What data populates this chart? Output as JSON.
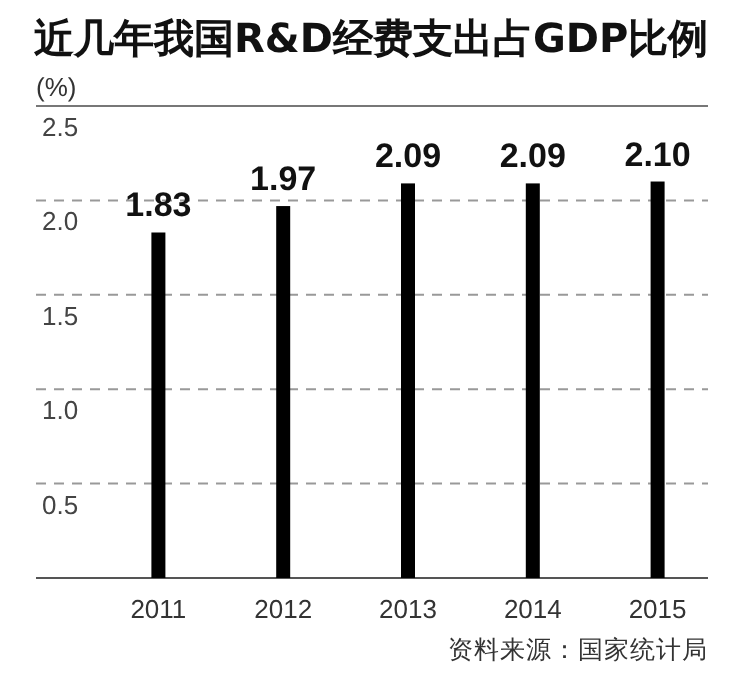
{
  "chart_data": {
    "type": "bar",
    "title": "近几年我国R&D经费支出占GDP比例",
    "ylabel": "(%)",
    "categories": [
      "2011",
      "2012",
      "2013",
      "2014",
      "2015"
    ],
    "values": [
      1.83,
      1.97,
      2.09,
      2.09,
      2.1
    ],
    "value_labels": [
      "1.83",
      "1.97",
      "2.09",
      "2.09",
      "2.10"
    ],
    "color": "#000000",
    "ylim": [
      0,
      2.5
    ],
    "yticks": [
      {
        "value": 0,
        "label": null
      },
      "0.5",
      "1.0",
      "1.5",
      "2.0",
      "2.5"
    ],
    "grid": "y",
    "annotations": [
      "资料来源：国家统计局"
    ]
  }
}
